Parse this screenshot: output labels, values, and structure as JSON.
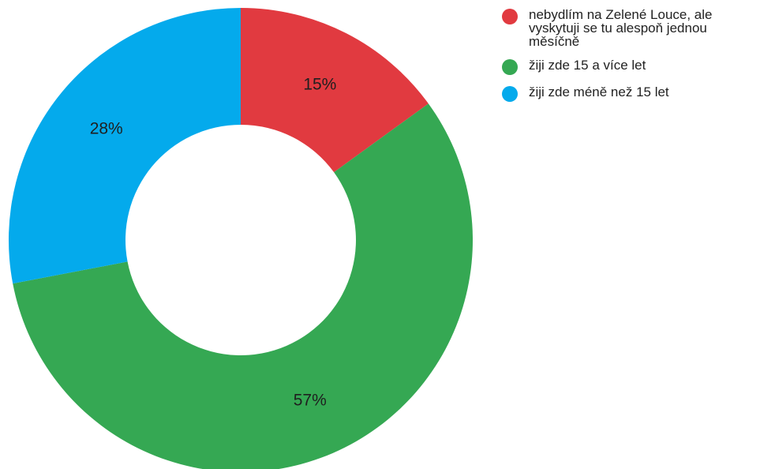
{
  "chart_data": {
    "type": "pie",
    "variant": "donut",
    "categories": [
      "nebydlím na Zelené Louce, ale vyskytuji se tu alespoň jednou měsíčně",
      "žiji zde 15 a více let",
      "žiji zde méně než 15 let"
    ],
    "values": [
      15,
      57,
      28
    ],
    "labels": [
      "15%",
      "57%",
      "28%"
    ],
    "colors": [
      "#e13a40",
      "#35a853",
      "#04aaec"
    ],
    "legend_position": "top-right"
  },
  "legend": {
    "items": [
      {
        "label": "nebydlím na Zelené Louce, ale vyskytuji se tu alespoň jednou měsíčně",
        "color": "#e13a40"
      },
      {
        "label": "žiji zde 15 a více let",
        "color": "#35a853"
      },
      {
        "label": "žiji zde méně než 15 let",
        "color": "#04aaec"
      }
    ]
  }
}
